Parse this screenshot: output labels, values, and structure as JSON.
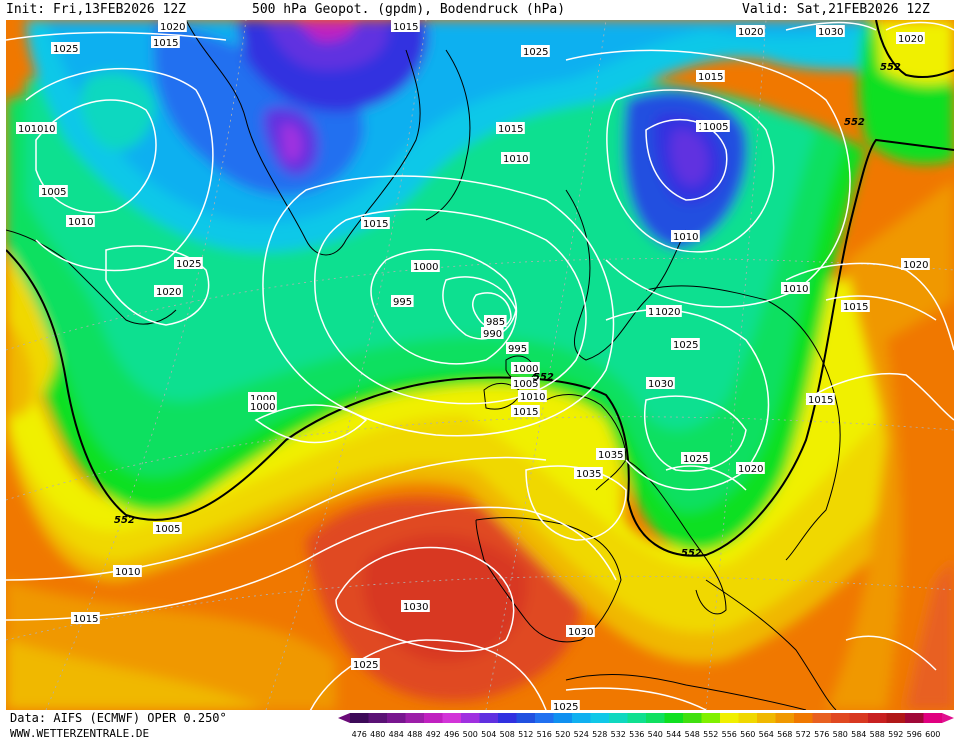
{
  "header": {
    "init": "Init: Fri,13FEB2026 12Z",
    "title": "500 hPa Geopot. (gpdm), Bodendruck (hPa)",
    "valid": "Valid: Sat,21FEB2026 12Z"
  },
  "footer": {
    "data_source": "Data: AIFS (ECMWF) OPER 0.250°",
    "website": "WWW.WETTERZENTRALE.DE"
  },
  "colorbar": {
    "values": [
      "476",
      "480",
      "484",
      "488",
      "492",
      "496",
      "500",
      "504",
      "508",
      "512",
      "516",
      "520",
      "524",
      "528",
      "532",
      "536",
      "540",
      "544",
      "548",
      "552",
      "556",
      "560",
      "564",
      "568",
      "572",
      "576",
      "580",
      "584",
      "588",
      "592",
      "596",
      "600"
    ],
    "colors": [
      "#3c0a58",
      "#5a1275",
      "#78168f",
      "#9c1ea8",
      "#c020c0",
      "#d234d8",
      "#a030e0",
      "#6030e0",
      "#3030e0",
      "#2050e0",
      "#2070f0",
      "#1090f0",
      "#10b0f0",
      "#10c8e8",
      "#10d8c0",
      "#10e090",
      "#10e060",
      "#10e020",
      "#40e010",
      "#80f000",
      "#f0f000",
      "#f0d800",
      "#f0b800",
      "#f09800",
      "#f07800",
      "#e86020",
      "#e04820",
      "#d83820",
      "#c82020",
      "#b01818",
      "#a00838",
      "#e00080"
    ],
    "arrow_left": "#6a0a78",
    "arrow_right": "#e01090"
  },
  "map_data": {
    "geopotential_labels": [
      {
        "text": "552"
      },
      {
        "text": "552"
      },
      {
        "text": "552"
      },
      {
        "text": "552"
      },
      {
        "text": "552"
      }
    ],
    "pressure_labels": [
      {
        "text": "1020"
      },
      {
        "text": "1015"
      },
      {
        "text": "1025"
      },
      {
        "text": "1015"
      },
      {
        "text": "1010"
      },
      {
        "text": "1005"
      },
      {
        "text": "1010"
      },
      {
        "text": "1025"
      },
      {
        "text": "1020"
      },
      {
        "text": "1015"
      },
      {
        "text": "1025"
      },
      {
        "text": "1015"
      },
      {
        "text": "1010"
      },
      {
        "text": "1005"
      },
      {
        "text": "1000"
      },
      {
        "text": "995"
      },
      {
        "text": "985"
      },
      {
        "text": "990"
      },
      {
        "text": "995"
      },
      {
        "text": "1000"
      },
      {
        "text": "1005"
      },
      {
        "text": "1010"
      },
      {
        "text": "1015"
      },
      {
        "text": "1000"
      },
      {
        "text": "1000"
      },
      {
        "text": "1005"
      },
      {
        "text": "1010"
      },
      {
        "text": "1015"
      },
      {
        "text": "1030"
      },
      {
        "text": "1025"
      },
      {
        "text": "1030"
      },
      {
        "text": "1035"
      },
      {
        "text": "1035"
      },
      {
        "text": "1025"
      },
      {
        "text": "1025"
      },
      {
        "text": "1030"
      },
      {
        "text": "1015"
      },
      {
        "text": "1005"
      },
      {
        "text": "1010"
      },
      {
        "text": "1030"
      },
      {
        "text": "1020"
      },
      {
        "text": "1020"
      },
      {
        "text": "1010"
      },
      {
        "text": "1015"
      },
      {
        "text": "1020"
      },
      {
        "text": "1025"
      },
      {
        "text": "1015"
      },
      {
        "text": "1020"
      },
      {
        "text": "1015"
      },
      {
        "text": "1010"
      },
      {
        "text": "1020"
      },
      {
        "text": "1015"
      }
    ]
  }
}
